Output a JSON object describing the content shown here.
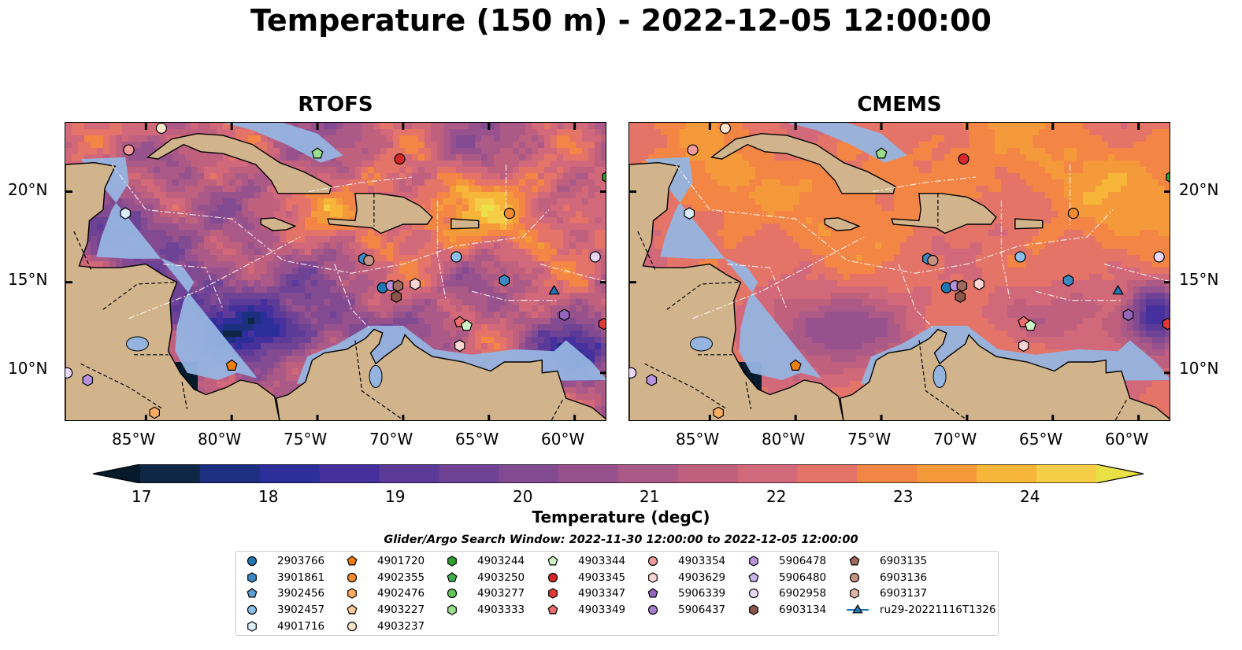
{
  "title": "Temperature (150 m) - 2022-12-05 12:00:00",
  "panels": [
    {
      "title": "RTOFS",
      "style": "rtofs"
    },
    {
      "title": "CMEMS",
      "style": "cmems"
    }
  ],
  "map": {
    "lon_range": [
      -89.7,
      -58.1
    ],
    "lat_range": [
      7.3,
      23.8
    ],
    "lat_ticks": [
      {
        "value": 20,
        "label": "20°N"
      },
      {
        "value": 15,
        "label": "15°N"
      },
      {
        "value": 10,
        "label": "10°N"
      }
    ],
    "lon_ticks": [
      {
        "value": -85,
        "label": "85°W"
      },
      {
        "value": -80,
        "label": "80°W"
      },
      {
        "value": -75,
        "label": "75°W"
      },
      {
        "value": -70,
        "label": "70°W"
      },
      {
        "value": -65,
        "label": "65°W"
      },
      {
        "value": -60,
        "label": "60°W"
      }
    ],
    "land_color": "#d2b48c",
    "shelf_color": "#96b4e0",
    "colormap": [
      "#051a2b",
      "#0f2744",
      "#1d2f80",
      "#2c2e99",
      "#46309e",
      "#5b3a98",
      "#6e4395",
      "#824a91",
      "#97518d",
      "#ab5a87",
      "#bf617e",
      "#d2697a",
      "#e47468",
      "#f38645",
      "#f59a3b",
      "#f7b53a",
      "#f6cd47",
      "#eae146"
    ]
  },
  "colorbar": {
    "label": "Temperature (degC)",
    "ticks": [
      "17",
      "18",
      "19",
      "20",
      "21",
      "22",
      "23",
      "24"
    ],
    "min": 16.5,
    "max": 24.5,
    "step": 0.5
  },
  "legend": {
    "title": "Glider/Argo Search Window: 2022-11-30 12:00:00 to 2022-12-05 12:00:00",
    "columns": [
      [
        {
          "label": "2903766",
          "marker": "circle",
          "color": "#1f77b4"
        },
        {
          "label": "3901861",
          "marker": "hexagon",
          "color": "#3e89c4"
        },
        {
          "label": "3902456",
          "marker": "pentagon",
          "color": "#5b9fd6"
        },
        {
          "label": "3902457",
          "marker": "circle",
          "color": "#89c0ec"
        },
        {
          "label": "4901716",
          "marker": "hexagon",
          "color": "#dcedfb"
        }
      ],
      [
        {
          "label": "4901720",
          "marker": "pentagon",
          "color": "#f07e0f"
        },
        {
          "label": "4902355",
          "marker": "circle",
          "color": "#f58b2e"
        },
        {
          "label": "4902476",
          "marker": "hexagon",
          "color": "#fbac60"
        },
        {
          "label": "4903227",
          "marker": "pentagon",
          "color": "#fcc898"
        },
        {
          "label": "4903237",
          "marker": "circle",
          "color": "#fde5cd"
        }
      ],
      [
        {
          "label": "4903244",
          "marker": "hexagon",
          "color": "#2ca02c"
        },
        {
          "label": "4903250",
          "marker": "pentagon",
          "color": "#3cb04a"
        },
        {
          "label": "4903277",
          "marker": "circle",
          "color": "#63c85a"
        },
        {
          "label": "4903333",
          "marker": "hexagon",
          "color": "#9adf8c"
        }
      ],
      [
        {
          "label": "4903344",
          "marker": "pentagon",
          "color": "#cdf5c4"
        },
        {
          "label": "4903345",
          "marker": "circle",
          "color": "#d62728"
        },
        {
          "label": "4903347",
          "marker": "hexagon",
          "color": "#e03a3a"
        },
        {
          "label": "4903349",
          "marker": "pentagon",
          "color": "#ee6d6d"
        }
      ],
      [
        {
          "label": "4903354",
          "marker": "circle",
          "color": "#f39a9a"
        },
        {
          "label": "4903629",
          "marker": "hexagon",
          "color": "#fcd6d6"
        },
        {
          "label": "5906339",
          "marker": "pentagon",
          "color": "#9467bd"
        },
        {
          "label": "5906437",
          "marker": "circle",
          "color": "#a57fce"
        }
      ],
      [
        {
          "label": "5906478",
          "marker": "hexagon",
          "color": "#b892dd"
        },
        {
          "label": "5906480",
          "marker": "pentagon",
          "color": "#ccb3ea"
        },
        {
          "label": "6902958",
          "marker": "circle",
          "color": "#e9d8f7"
        },
        {
          "label": "6903134",
          "marker": "hexagon",
          "color": "#8c564b"
        }
      ],
      [
        {
          "label": "6903135",
          "marker": "pentagon",
          "color": "#a06a5c"
        },
        {
          "label": "6903136",
          "marker": "circle",
          "color": "#c49384"
        },
        {
          "label": "6903137",
          "marker": "hexagon",
          "color": "#e3b4a5"
        },
        {
          "label": "ru29-20221116T1326",
          "marker": "triangle-line",
          "color": "#1f77b4"
        }
      ]
    ]
  },
  "floats": [
    {
      "lon": -84.1,
      "lat": 23.5,
      "marker": "circle",
      "color": "#fde5cd"
    },
    {
      "lon": -86.0,
      "lat": 22.3,
      "marker": "circle",
      "color": "#f39a9a"
    },
    {
      "lon": -75.0,
      "lat": 22.1,
      "marker": "pentagon",
      "color": "#9adf8c"
    },
    {
      "lon": -70.2,
      "lat": 21.8,
      "marker": "circle",
      "color": "#d62728"
    },
    {
      "lon": -86.2,
      "lat": 18.8,
      "marker": "hexagon",
      "color": "#dcedfb"
    },
    {
      "lon": -63.8,
      "lat": 18.8,
      "marker": "circle",
      "color": "#f58b2e"
    },
    {
      "lon": -72.3,
      "lat": 16.3,
      "marker": "hexagon",
      "color": "#3e89c4"
    },
    {
      "lon": -72.0,
      "lat": 16.2,
      "marker": "circle",
      "color": "#c49384"
    },
    {
      "lon": -66.9,
      "lat": 16.4,
      "marker": "circle",
      "color": "#89c0ec"
    },
    {
      "lon": -58.8,
      "lat": 16.4,
      "marker": "circle",
      "color": "#e9d8f7"
    },
    {
      "lon": -64.1,
      "lat": 15.1,
      "marker": "hexagon",
      "color": "#3e89c4"
    },
    {
      "lon": -71.2,
      "lat": 14.7,
      "marker": "circle",
      "color": "#1f77b4"
    },
    {
      "lon": -70.7,
      "lat": 14.8,
      "marker": "circle",
      "color": "#b892dd"
    },
    {
      "lon": -70.3,
      "lat": 14.8,
      "marker": "hexagon",
      "color": "#a06a5c"
    },
    {
      "lon": -69.3,
      "lat": 14.9,
      "marker": "hexagon",
      "color": "#fcd6d6"
    },
    {
      "lon": -70.4,
      "lat": 14.2,
      "marker": "hexagon",
      "color": "#8c564b"
    },
    {
      "lon": -61.2,
      "lat": 14.5,
      "marker": "triangle",
      "color": "#1f77b4"
    },
    {
      "lon": -60.6,
      "lat": 13.2,
      "marker": "hexagon",
      "color": "#9467bd"
    },
    {
      "lon": -66.7,
      "lat": 12.8,
      "marker": "pentagon",
      "color": "#ee6d6d"
    },
    {
      "lon": -66.3,
      "lat": 12.6,
      "marker": "pentagon",
      "color": "#cdf5c4"
    },
    {
      "lon": -66.7,
      "lat": 11.5,
      "marker": "hexagon",
      "color": "#fcd6d6"
    },
    {
      "lon": -58.3,
      "lat": 12.7,
      "marker": "hexagon",
      "color": "#e03a3a"
    },
    {
      "lon": -58.1,
      "lat": 20.8,
      "marker": "hexagon",
      "color": "#2ca02c"
    },
    {
      "lon": -80.0,
      "lat": 10.4,
      "marker": "pentagon",
      "color": "#f07e0f"
    },
    {
      "lon": -84.5,
      "lat": 7.8,
      "marker": "hexagon",
      "color": "#fbac60"
    },
    {
      "lon": -89.6,
      "lat": 10.0,
      "marker": "circle",
      "color": "#e9d8f7"
    },
    {
      "lon": -88.4,
      "lat": 9.6,
      "marker": "hexagon",
      "color": "#b892dd"
    }
  ]
}
